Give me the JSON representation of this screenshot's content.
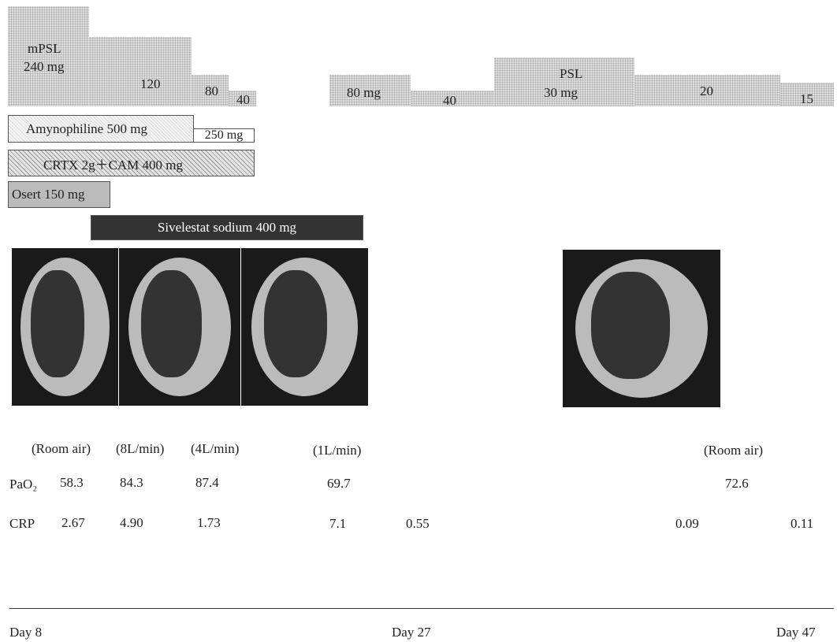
{
  "treatments": {
    "mpsl": {
      "label": "mPSL",
      "doses": [
        "240 mg",
        "120",
        "80",
        "40"
      ]
    },
    "psl": {
      "label": "PSL",
      "doses": [
        "80 mg",
        "40",
        "30 mg",
        "20",
        "15"
      ]
    },
    "amynophiline": [
      "Amynophiline 500 mg",
      "250 mg"
    ],
    "antibiotics": "CRTX 2g＋CAM 400 mg",
    "osert": "Osert 150 mg",
    "sivelestat": "Sivelestat sodium 400 mg"
  },
  "oxygen": [
    "(Room air)",
    "(8L/min)",
    "(4L/min)",
    "(1L/min)",
    "(Room air)"
  ],
  "pao2": {
    "label": "PaO₂",
    "values": [
      "58.3",
      "84.3",
      "87.4",
      "69.7",
      "72.6"
    ]
  },
  "crp": {
    "label": "CRP",
    "values": [
      "2.67",
      "4.90",
      "1.73",
      "7.1",
      "0.55",
      "0.09",
      "0.11"
    ]
  },
  "timeline": [
    "Day 8",
    "Day 27",
    "Day 47"
  ]
}
